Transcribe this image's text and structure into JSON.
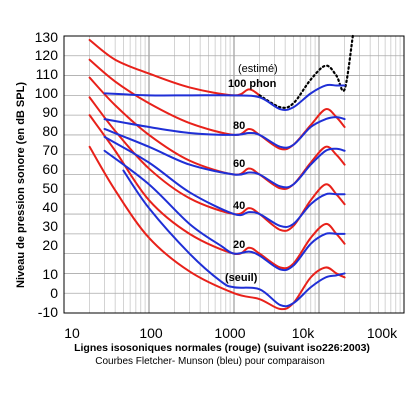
{
  "chart_data": {
    "type": "line",
    "xscale": "log",
    "xlim": [
      10,
      100000
    ],
    "ylim": [
      -10,
      130
    ],
    "grid": true,
    "ylabel": "Niveau de pression sonore (en dB SPL)",
    "xlabel": "Lignes isosoniques normales (rouge) (suivant iso226:2003)",
    "subtitle": "Courbes Fletcher- Munson (bleu) pour comparaison",
    "x_tick_labels": [
      "10",
      "100",
      "1000",
      "10k",
      "100k"
    ],
    "y_tick_labels": [
      "130",
      "120",
      "110",
      "100",
      "90",
      "80",
      "70",
      "60",
      "50",
      "40",
      "30",
      "20",
      "10",
      "0",
      "-10"
    ],
    "annotations": [
      "(estimé)",
      "100 phon",
      "80",
      "60",
      "40",
      "20",
      "(seuil)"
    ],
    "series": [
      {
        "group": "iso226",
        "color": "#e8211a",
        "style": "solid",
        "points": [
          [
            20,
            74
          ],
          [
            40,
            52
          ],
          [
            100,
            28
          ],
          [
            300,
            11
          ],
          [
            1000,
            0
          ],
          [
            2000,
            -3
          ],
          [
            3500,
            -8
          ],
          [
            5000,
            -5
          ],
          [
            8000,
            8
          ],
          [
            12000,
            13
          ],
          [
            16000,
            10
          ],
          [
            20000,
            8
          ]
        ]
      },
      {
        "group": "iso226",
        "color": "#e8211a",
        "style": "solid",
        "points": [
          [
            20,
            90
          ],
          [
            40,
            72
          ],
          [
            100,
            47
          ],
          [
            300,
            30
          ],
          [
            1000,
            20
          ],
          [
            1500,
            23
          ],
          [
            2000,
            20
          ],
          [
            3500,
            13
          ],
          [
            5000,
            15
          ],
          [
            8000,
            28
          ],
          [
            12000,
            35
          ],
          [
            16000,
            30
          ],
          [
            20000,
            25
          ]
        ]
      },
      {
        "group": "iso226",
        "color": "#e8211a",
        "style": "solid",
        "points": [
          [
            20,
            99
          ],
          [
            40,
            82
          ],
          [
            100,
            63
          ],
          [
            300,
            48
          ],
          [
            1000,
            40
          ],
          [
            1500,
            43
          ],
          [
            2000,
            40
          ],
          [
            3500,
            32
          ],
          [
            5000,
            34
          ],
          [
            8000,
            47
          ],
          [
            12000,
            55
          ],
          [
            16000,
            50
          ],
          [
            20000,
            45
          ]
        ]
      },
      {
        "group": "iso226",
        "color": "#e8211a",
        "style": "solid",
        "points": [
          [
            20,
            109
          ],
          [
            40,
            95
          ],
          [
            100,
            80
          ],
          [
            300,
            67
          ],
          [
            1000,
            60
          ],
          [
            1500,
            63
          ],
          [
            2000,
            60
          ],
          [
            3500,
            53
          ],
          [
            5000,
            55
          ],
          [
            8000,
            66
          ],
          [
            12000,
            74
          ],
          [
            16000,
            70
          ],
          [
            20000,
            65
          ]
        ]
      },
      {
        "group": "iso226",
        "color": "#e8211a",
        "style": "solid",
        "points": [
          [
            20,
            118
          ],
          [
            40,
            107
          ],
          [
            100,
            96
          ],
          [
            300,
            86
          ],
          [
            1000,
            80
          ],
          [
            1500,
            83
          ],
          [
            2000,
            80
          ],
          [
            3500,
            73
          ],
          [
            5000,
            75
          ],
          [
            8000,
            85
          ],
          [
            12000,
            93
          ],
          [
            16000,
            89
          ],
          [
            20000,
            84
          ]
        ]
      },
      {
        "group": "iso226",
        "color": "#e8211a",
        "style": "solid",
        "points": [
          [
            20,
            128
          ],
          [
            40,
            118
          ],
          [
            100,
            111
          ],
          [
            300,
            104
          ],
          [
            1000,
            100
          ],
          [
            1500,
            103
          ],
          [
            2000,
            100
          ]
        ]
      },
      {
        "group": "iso226_estimated",
        "color": "#000000",
        "style": "dotted",
        "points": [
          [
            2000,
            100
          ],
          [
            3500,
            94
          ],
          [
            5000,
            96
          ],
          [
            8000,
            108
          ],
          [
            12000,
            115
          ],
          [
            16000,
            110
          ],
          [
            20000,
            103
          ],
          [
            25000,
            130
          ]
        ]
      },
      {
        "group": "fletcher_munson",
        "color": "#1f2fd6",
        "style": "solid",
        "points": [
          [
            50,
            62
          ],
          [
            100,
            43
          ],
          [
            300,
            20
          ],
          [
            700,
            6
          ],
          [
            1000,
            3
          ],
          [
            2000,
            2
          ],
          [
            3500,
            -6
          ],
          [
            5000,
            -5
          ],
          [
            8000,
            3
          ],
          [
            12000,
            8
          ],
          [
            16000,
            9
          ],
          [
            20000,
            10
          ]
        ]
      },
      {
        "group": "fletcher_munson",
        "color": "#1f2fd6",
        "style": "solid",
        "points": [
          [
            30,
            72
          ],
          [
            100,
            55
          ],
          [
            300,
            35
          ],
          [
            700,
            24
          ],
          [
            1000,
            20
          ],
          [
            1500,
            21
          ],
          [
            2000,
            19
          ],
          [
            3500,
            12
          ],
          [
            5000,
            14
          ],
          [
            8000,
            25
          ],
          [
            12000,
            30
          ],
          [
            16000,
            30
          ],
          [
            20000,
            30
          ]
        ]
      },
      {
        "group": "fletcher_munson",
        "color": "#1f2fd6",
        "style": "solid",
        "points": [
          [
            30,
            79
          ],
          [
            100,
            66
          ],
          [
            300,
            51
          ],
          [
            1000,
            40
          ],
          [
            1500,
            41
          ],
          [
            2000,
            40
          ],
          [
            3500,
            34
          ],
          [
            5000,
            35
          ],
          [
            8000,
            45
          ],
          [
            12000,
            50
          ],
          [
            16000,
            50
          ],
          [
            20000,
            50
          ]
        ]
      },
      {
        "group": "fletcher_munson",
        "color": "#1f2fd6",
        "style": "solid",
        "points": [
          [
            30,
            83
          ],
          [
            100,
            74
          ],
          [
            300,
            65
          ],
          [
            1000,
            60
          ],
          [
            1500,
            61
          ],
          [
            2000,
            60
          ],
          [
            3500,
            54
          ],
          [
            5000,
            55
          ],
          [
            8000,
            65
          ],
          [
            12000,
            72
          ],
          [
            16000,
            73
          ],
          [
            20000,
            72
          ]
        ]
      },
      {
        "group": "fletcher_munson",
        "color": "#1f2fd6",
        "style": "solid",
        "points": [
          [
            30,
            88
          ],
          [
            100,
            84
          ],
          [
            300,
            81
          ],
          [
            1000,
            80
          ],
          [
            1500,
            81
          ],
          [
            2000,
            80
          ],
          [
            3500,
            74
          ],
          [
            5000,
            75
          ],
          [
            8000,
            84
          ],
          [
            12000,
            88
          ],
          [
            16000,
            89
          ],
          [
            20000,
            88
          ]
        ]
      },
      {
        "group": "fletcher_munson",
        "color": "#1f2fd6",
        "style": "solid",
        "points": [
          [
            30,
            101
          ],
          [
            100,
            100
          ],
          [
            300,
            100
          ],
          [
            1000,
            100
          ],
          [
            2000,
            99
          ],
          [
            3500,
            93
          ],
          [
            5000,
            94
          ],
          [
            8000,
            101
          ],
          [
            12000,
            105
          ],
          [
            16000,
            105
          ],
          [
            20000,
            105
          ]
        ]
      }
    ]
  }
}
